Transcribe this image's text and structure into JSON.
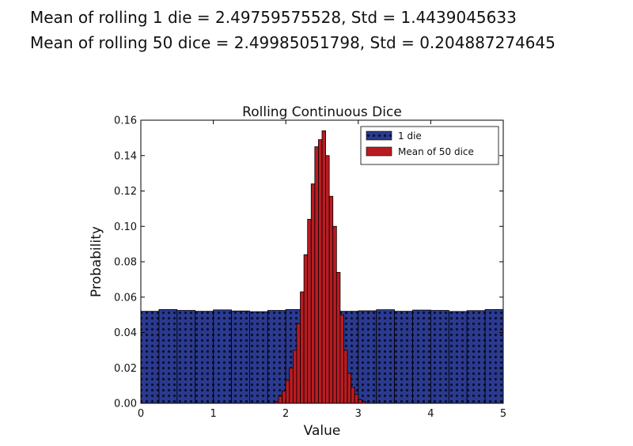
{
  "header": {
    "line1": "Mean of rolling 1 die = 2.49759575528, Std = 1.4439045633",
    "line2": "Mean of rolling 50 dice = 2.49985051798, Std = 0.204887274645"
  },
  "chart_data": {
    "type": "bar",
    "title": "Rolling Continuous Dice",
    "xlabel": "Value",
    "ylabel": "Probability",
    "xlim": [
      0,
      5
    ],
    "ylim": [
      0,
      0.16
    ],
    "xticks": [
      "0",
      "1",
      "2",
      "3",
      "4",
      "5"
    ],
    "yticks": [
      "0.00",
      "0.02",
      "0.04",
      "0.06",
      "0.08",
      "0.10",
      "0.12",
      "0.14",
      "0.16"
    ],
    "grid": false,
    "legend_position": "top-right",
    "series": [
      {
        "name": "1 die",
        "color": "#2b3a8f",
        "pattern": "dots",
        "bin_edges": [
          0.0,
          0.25,
          0.5,
          0.75,
          1.0,
          1.25,
          1.5,
          1.75,
          2.0,
          2.25,
          2.5,
          2.75,
          3.0,
          3.25,
          3.5,
          3.75,
          4.0,
          4.25,
          4.5,
          4.75,
          5.0
        ],
        "values": [
          0.052,
          0.053,
          0.0525,
          0.052,
          0.0528,
          0.0522,
          0.0518,
          0.0525,
          0.053,
          0.052,
          0.0526,
          0.052,
          0.0523,
          0.0529,
          0.052,
          0.0527,
          0.0525,
          0.0519,
          0.0524,
          0.053
        ]
      },
      {
        "name": "Mean of 50 dice",
        "color": "#b81c22",
        "pattern": "solid",
        "bin_edges": [
          1.85,
          1.9,
          1.95,
          2.0,
          2.05,
          2.1,
          2.15,
          2.2,
          2.25,
          2.3,
          2.35,
          2.4,
          2.45,
          2.5,
          2.55,
          2.6,
          2.65,
          2.7,
          2.75,
          2.8,
          2.85,
          2.9,
          2.95,
          3.0,
          3.05,
          3.1
        ],
        "values": [
          0.001,
          0.004,
          0.007,
          0.013,
          0.02,
          0.03,
          0.045,
          0.063,
          0.084,
          0.104,
          0.124,
          0.145,
          0.149,
          0.154,
          0.14,
          0.117,
          0.1,
          0.074,
          0.05,
          0.03,
          0.017,
          0.009,
          0.005,
          0.002,
          0.001
        ]
      }
    ]
  }
}
